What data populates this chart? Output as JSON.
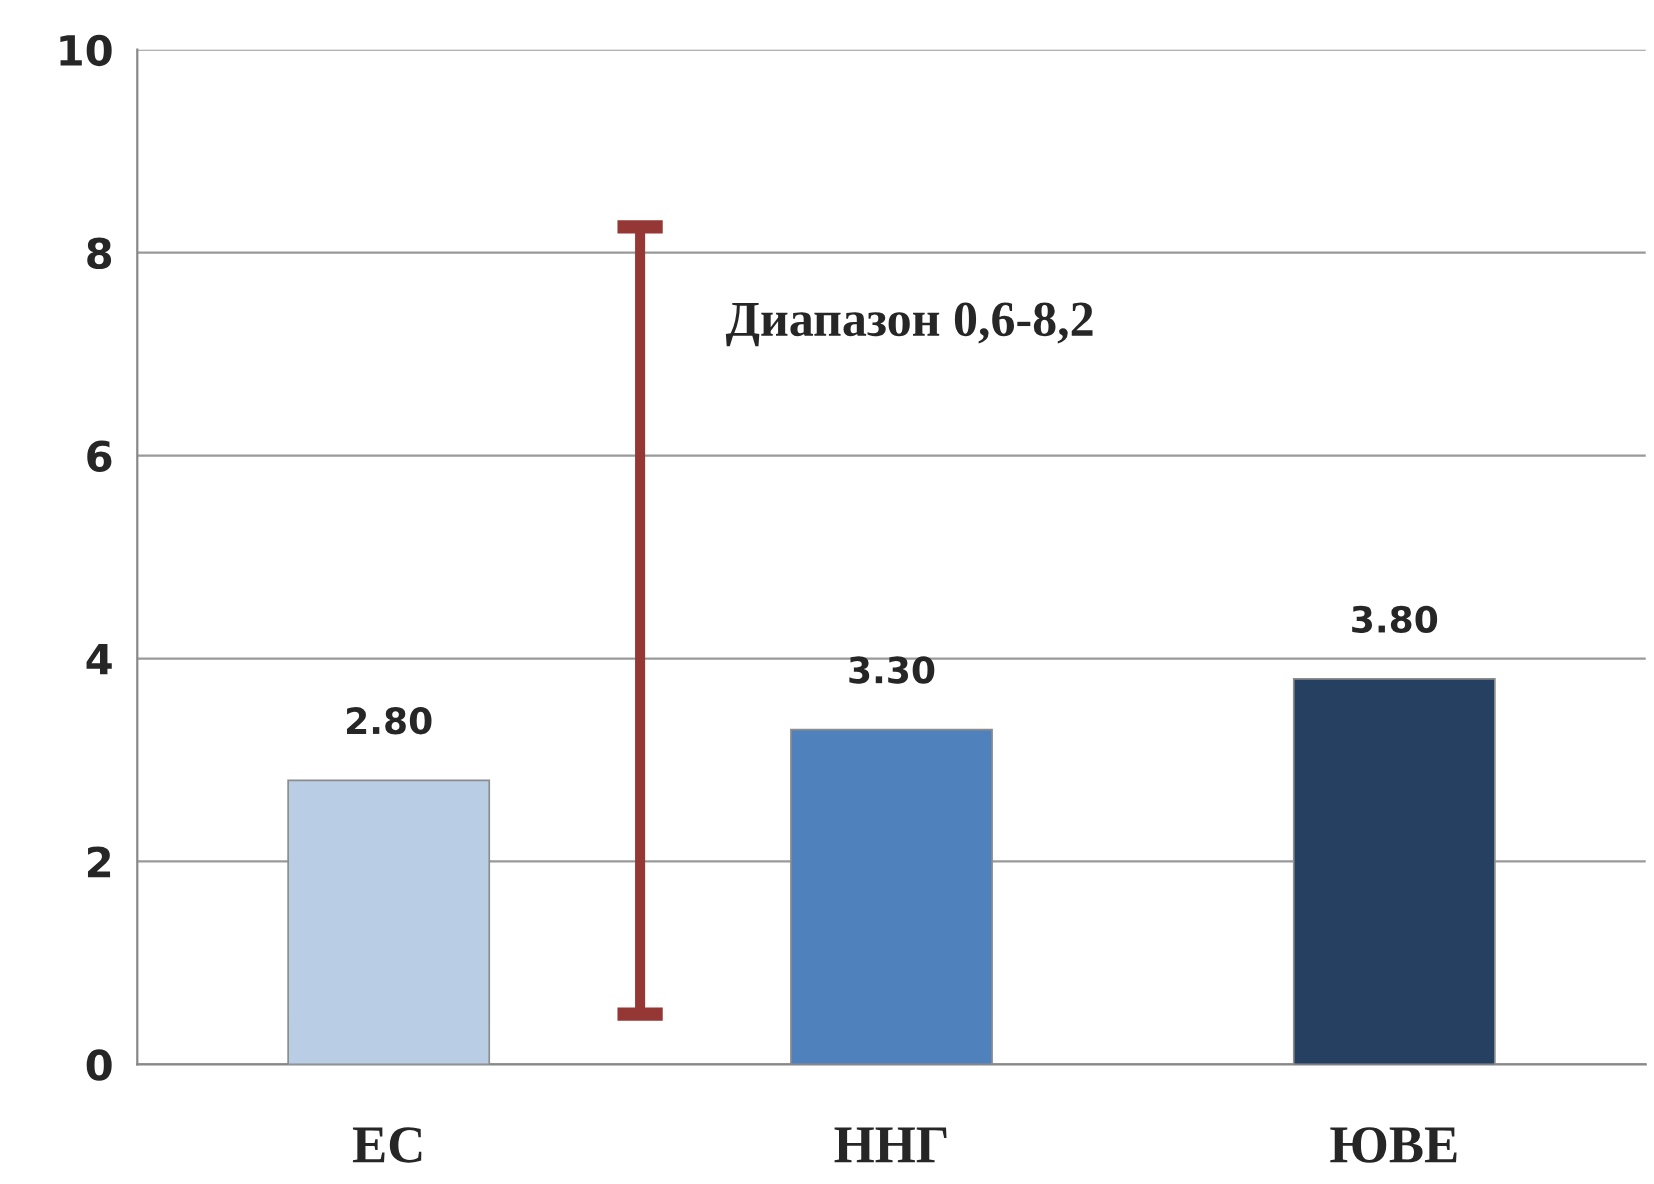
{
  "chart_data": {
    "type": "bar",
    "categories": [
      "ЕС",
      "ННГ",
      "ЮВЕ"
    ],
    "values": [
      2.8,
      3.3,
      3.8
    ],
    "colors": [
      "#b9cde5",
      "#4f81bd",
      "#254061"
    ],
    "value_labels": [
      "2.80",
      "3.30",
      "3.80"
    ],
    "ylim": [
      0,
      10
    ],
    "yticks": [
      0,
      2,
      4,
      6,
      8,
      10
    ],
    "grid": "y",
    "annotations": [
      "Диапазон 0,6-8,2"
    ]
  }
}
